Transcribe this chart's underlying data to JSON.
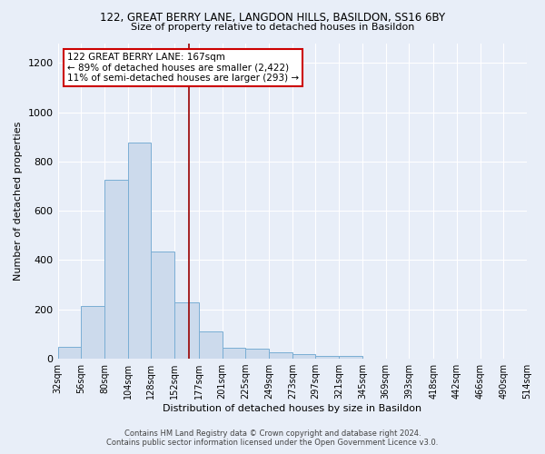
{
  "title1": "122, GREAT BERRY LANE, LANGDON HILLS, BASILDON, SS16 6BY",
  "title2": "Size of property relative to detached houses in Basildon",
  "xlabel": "Distribution of detached houses by size in Basildon",
  "ylabel": "Number of detached properties",
  "bin_edges": [
    32,
    56,
    80,
    104,
    128,
    152,
    177,
    201,
    225,
    249,
    273,
    297,
    321,
    345,
    369,
    393,
    418,
    442,
    466,
    490,
    514
  ],
  "bar_heights": [
    50,
    215,
    725,
    875,
    435,
    230,
    110,
    45,
    40,
    25,
    20,
    10,
    10,
    0,
    0,
    0,
    0,
    0,
    0,
    0
  ],
  "bar_color": "#ccdaec",
  "bar_edge_color": "#7aaed4",
  "property_size": 167,
  "vline_color": "#990000",
  "ylim": [
    0,
    1280
  ],
  "yticks": [
    0,
    200,
    400,
    600,
    800,
    1000,
    1200
  ],
  "annotation_line1": "122 GREAT BERRY LANE: 167sqm",
  "annotation_line2": "← 89% of detached houses are smaller (2,422)",
  "annotation_line3": "11% of semi-detached houses are larger (293) →",
  "annotation_box_color": "#ffffff",
  "annotation_box_edge": "#cc0000",
  "background_color": "#e8eef8",
  "grid_color": "#ffffff",
  "footer1": "Contains HM Land Registry data © Crown copyright and database right 2024.",
  "footer2": "Contains public sector information licensed under the Open Government Licence v3.0."
}
